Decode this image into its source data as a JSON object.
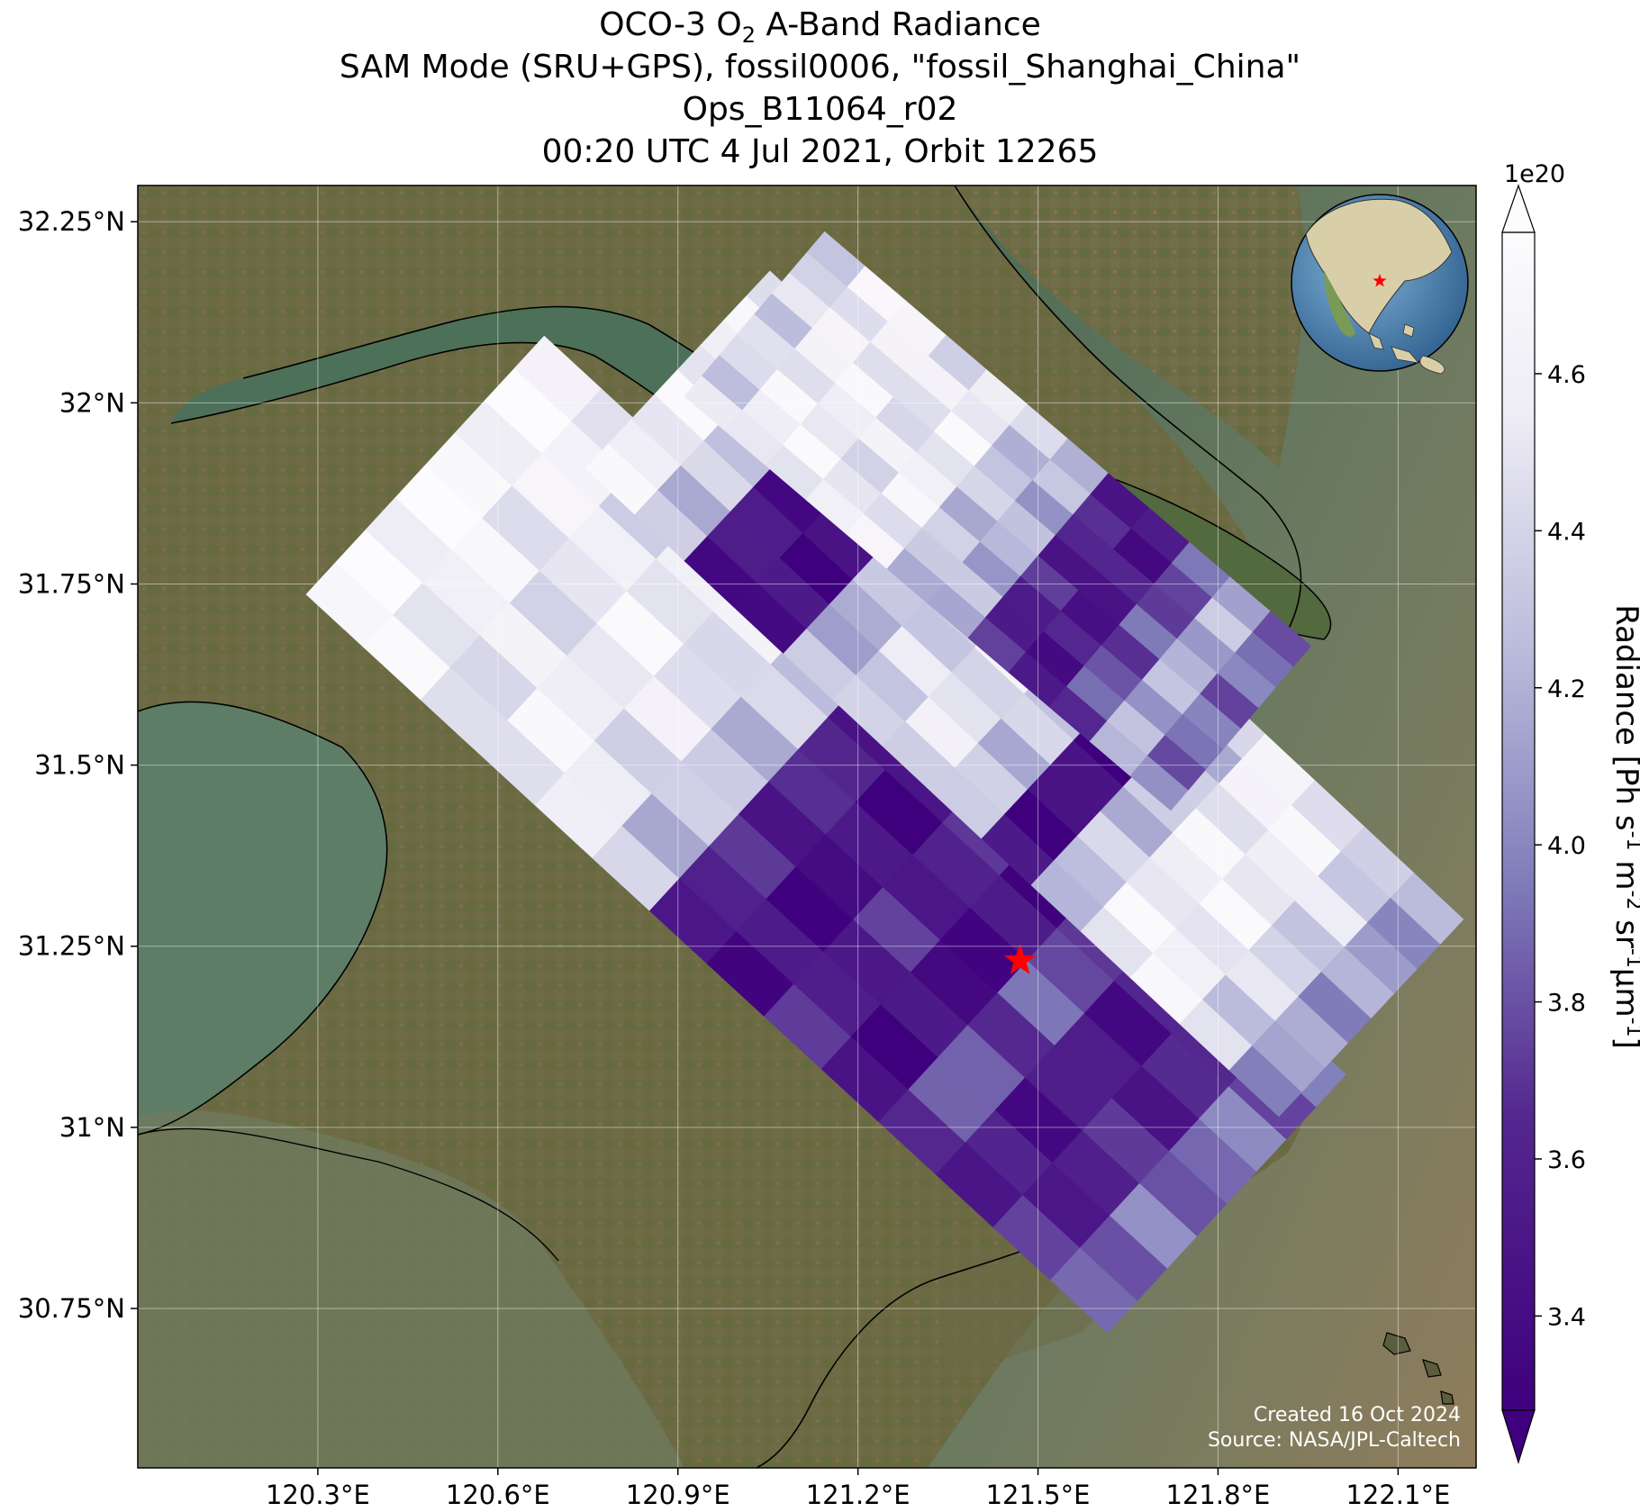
{
  "title": {
    "line1_pre": "OCO-3 O",
    "line1_sub": "2",
    "line1_post": " A-Band Radiance",
    "line2": "SAM Mode (SRU+GPS), fossil0006, \"fossil_Shanghai_China\"",
    "line3": "Ops_B11064_r02",
    "line4": "00:20 UTC 4 Jul 2021, Orbit 12265"
  },
  "map": {
    "lat_ticks": [
      "32.25°N",
      "32°N",
      "31.75°N",
      "31.5°N",
      "31.25°N",
      "31°N",
      "30.75°N"
    ],
    "lat_values": [
      32.25,
      32.0,
      31.75,
      31.5,
      31.25,
      31.0,
      30.75
    ],
    "lon_ticks": [
      "120.3°E",
      "120.6°E",
      "120.9°E",
      "121.2°E",
      "121.5°E",
      "121.8°E",
      "122.1°E"
    ],
    "lon_values": [
      120.3,
      120.6,
      120.9,
      121.2,
      121.5,
      121.8,
      122.1
    ],
    "lat_range": [
      30.53,
      32.3
    ],
    "lon_range": [
      120.0,
      122.23
    ],
    "target_marker": {
      "lat": 31.23,
      "lon": 121.47,
      "color": "#ff0000",
      "shape": "star"
    },
    "credit_line1": "Created 16 Oct 2024",
    "credit_line2": "Source: NASA/JPL-Caltech"
  },
  "colorbar": {
    "label_main": "Radiance [Ph s",
    "label_units": [
      "-1",
      " m",
      "-2",
      " sr",
      "-1",
      "μm",
      "-1",
      "]"
    ],
    "exponent": "1e20",
    "tick_labels": [
      "3.4",
      "3.6",
      "3.8",
      "4.0",
      "4.2",
      "4.4",
      "4.6"
    ],
    "tick_values": [
      3.4,
      3.6,
      3.8,
      4.0,
      4.2,
      4.4,
      4.6
    ],
    "range": [
      3.28,
      4.78
    ],
    "colormap": "Purples_r",
    "extend": "both",
    "low_color": "#3f007d",
    "high_color": "#fcfbfd"
  },
  "chart_data": {
    "type": "heatmap",
    "title": "OCO-3 O2 A-Band Radiance",
    "value_label": "Radiance",
    "scale": "1e20",
    "unit": "Ph s-1 m-2 sr-1 μm-1",
    "value_range": [
      3.28,
      4.78
    ],
    "swaths": [
      {
        "name": "",
        "lon_start": 120.28,
        "lon_end": 121.9,
        "values": [
          4.7,
          4.6,
          4.5,
          4.6,
          4.5,
          4.3,
          3.6,
          3.4,
          3.6,
          3.4,
          3.8,
          3.5,
          3.6,
          3.9
        ]
      },
      {
        "name": "",
        "lon_start": 120.63,
        "lon_end": 122.0,
        "values": [
          4.6,
          4.3,
          3.5,
          3.4,
          4.2,
          4.4,
          4.5,
          4.3,
          3.4,
          4.3,
          4.6,
          4.6,
          4.4,
          4.1
        ]
      },
      {
        "name": "",
        "lon_start": 120.95,
        "lon_end": 121.92,
        "values": [
          4.4,
          4.6,
          4.6,
          4.5,
          4.6,
          4.3,
          4.2,
          3.6,
          3.5,
          3.8,
          4.2,
          3.9
        ]
      }
    ]
  },
  "inset_globe": {
    "marker_color": "#ff0000",
    "marker_shape": "star"
  }
}
